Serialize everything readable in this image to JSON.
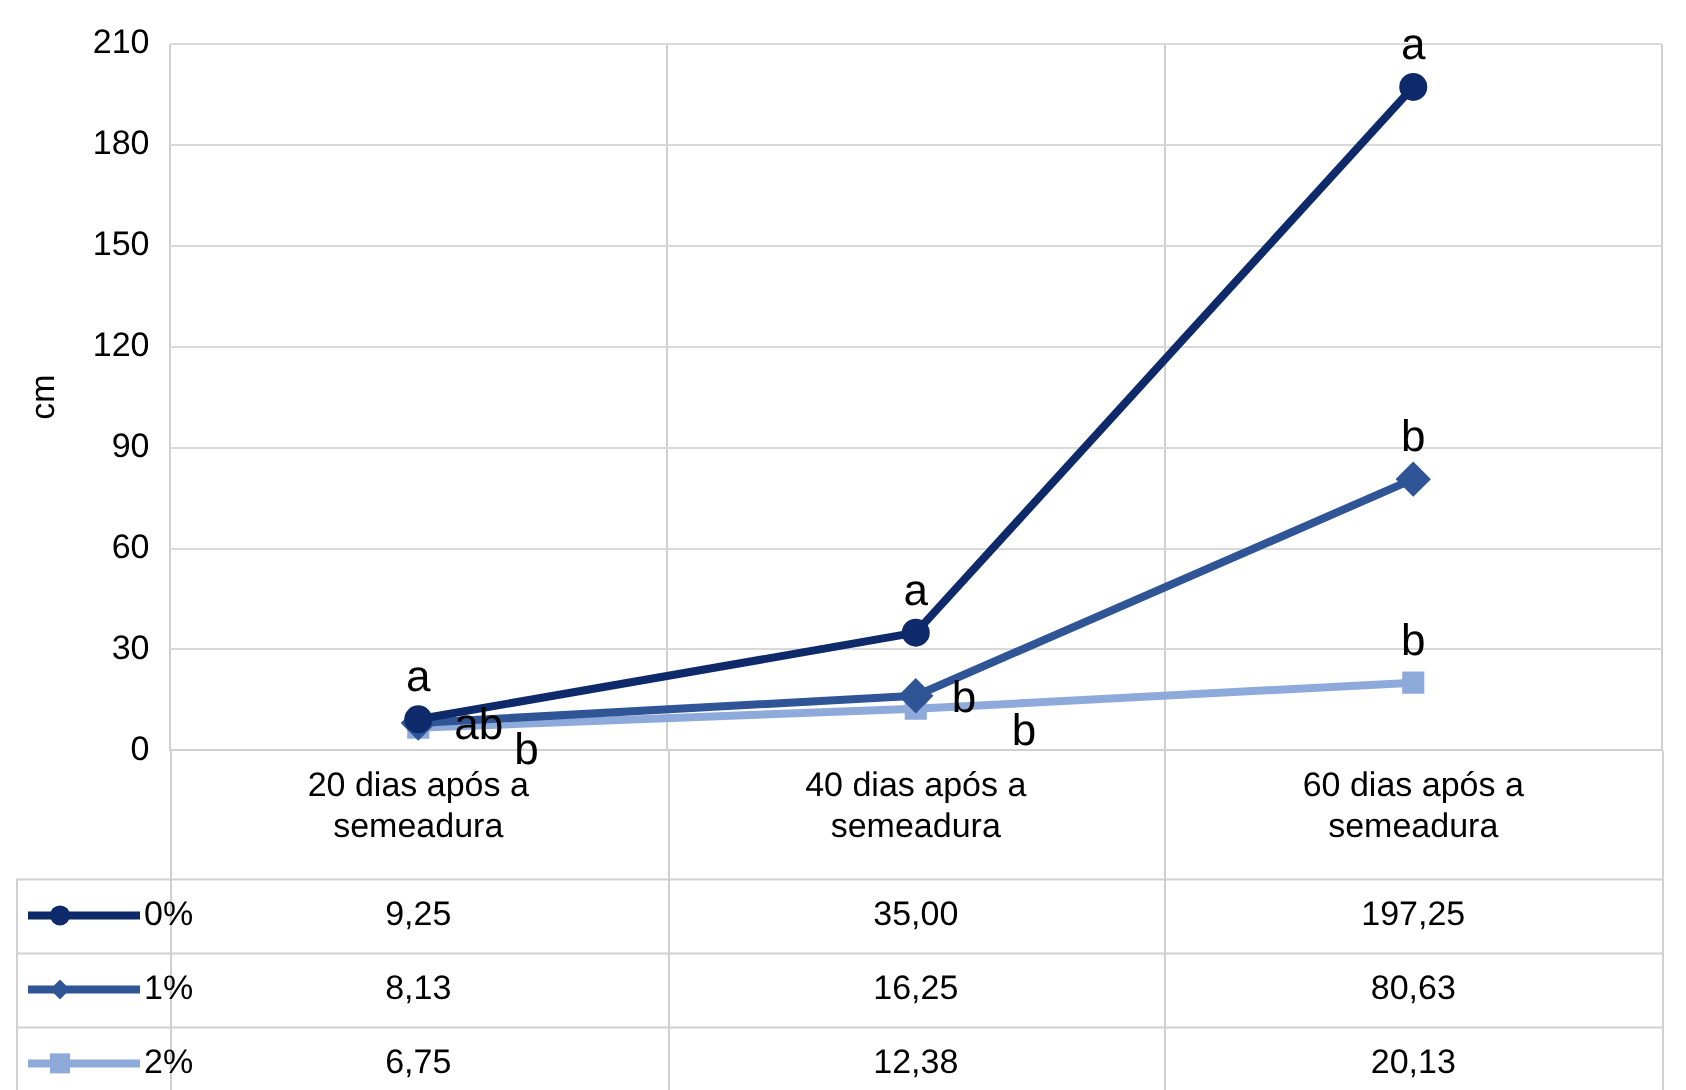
{
  "chart_data": {
    "type": "line",
    "ylabel": "cm",
    "categories": [
      "20 dias após a semeadura",
      "40 dias após a semeadura",
      "60 dias após a semeadura"
    ],
    "series": [
      {
        "name": "0%",
        "color": "#0e2a6b",
        "marker": "circle",
        "values": [
          9.25,
          35.0,
          197.25
        ],
        "value_labels": [
          "9,25",
          "35,00",
          "197,25"
        ]
      },
      {
        "name": "1%",
        "color": "#2f5597",
        "marker": "diamond",
        "values": [
          8.13,
          16.25,
          80.63
        ],
        "value_labels": [
          "8,13",
          "16,25",
          "80,63"
        ]
      },
      {
        "name": "2%",
        "color": "#8eaadb",
        "marker": "square",
        "values": [
          6.75,
          12.38,
          20.13
        ],
        "value_labels": [
          "6,75",
          "12,38",
          "20,13"
        ]
      }
    ],
    "legend": "bottom left",
    "ylim": [
      0,
      210
    ],
    "yticks": [
      0,
      30,
      60,
      90,
      120,
      150,
      180,
      210
    ],
    "grid": true,
    "line_style": "solid",
    "annotations": [
      {
        "text": "b",
        "x": "20 dias após a semeadura",
        "y": 6.75
      },
      {
        "text": "ab",
        "x": "20 dias após a semeadura",
        "y": 8.13
      },
      {
        "text": "a",
        "x": "20 dias após a semeadura",
        "y": 9.25
      },
      {
        "text": "b",
        "x": "40 dias após a semeadura",
        "y": 12.38
      },
      {
        "text": "b",
        "x": "40 dias após a semeadura",
        "y": 16.25
      },
      {
        "text": "a",
        "x": "40 dias após a semeadura",
        "y": 35.0
      },
      {
        "text": "b",
        "x": "60 dias após a semeadura",
        "y": 20.13
      },
      {
        "text": "b",
        "x": "60 dias após a semeadura",
        "y": 80.63
      },
      {
        "text": "a",
        "x": "60 dias após a semeadura",
        "y": 197.25
      }
    ]
  }
}
